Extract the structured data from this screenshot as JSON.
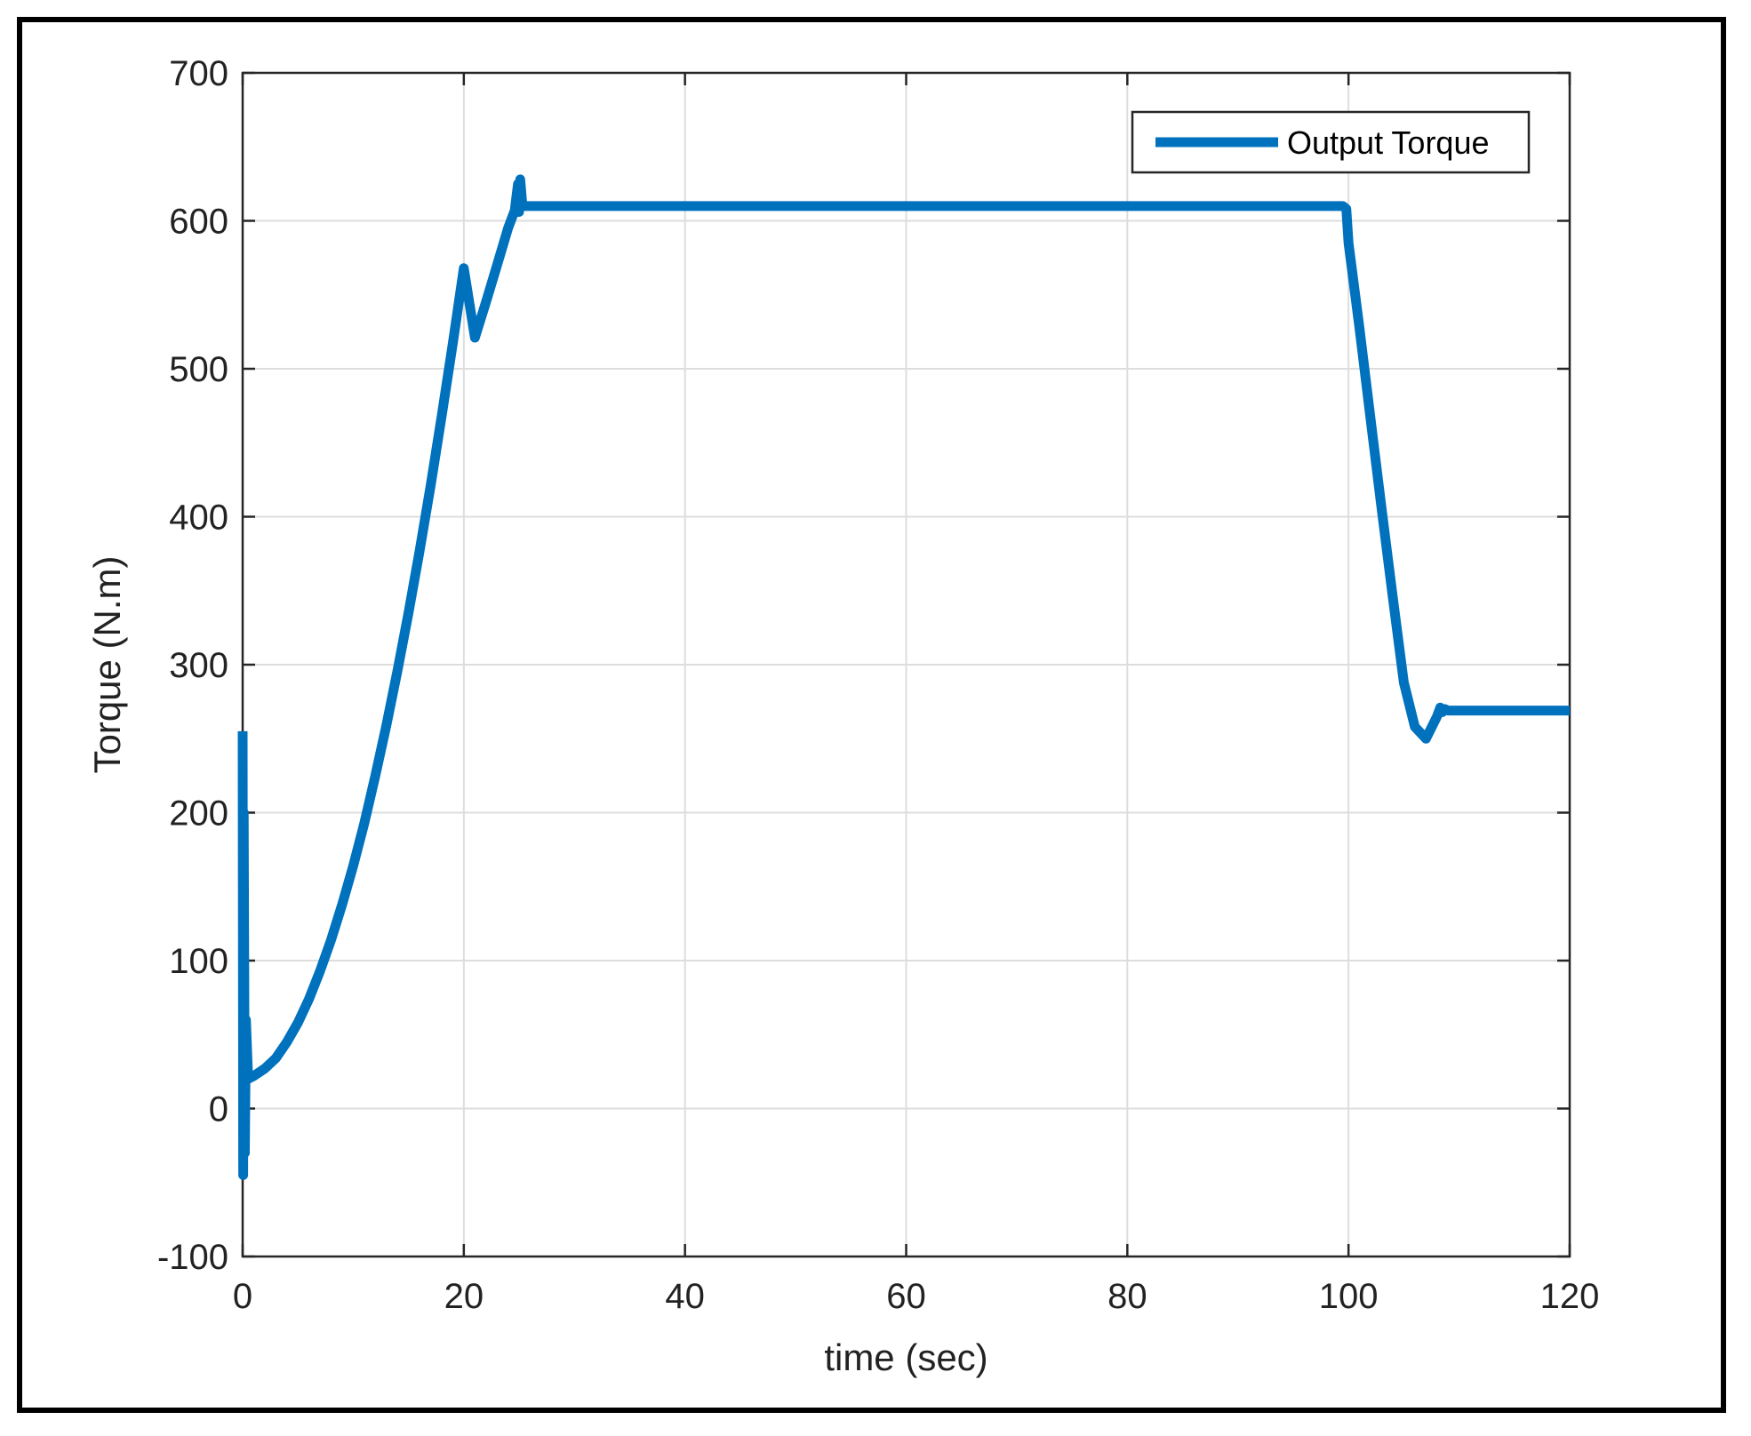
{
  "chart_data": {
    "type": "line",
    "title": "",
    "xlabel": "time (sec)",
    "ylabel": "Torque (N.m)",
    "xlim": [
      0,
      120
    ],
    "ylim": [
      -100,
      700
    ],
    "x_ticks": [
      0,
      20,
      40,
      60,
      80,
      100,
      120
    ],
    "y_ticks": [
      -100,
      0,
      100,
      200,
      300,
      400,
      500,
      600,
      700
    ],
    "grid": true,
    "legend": {
      "placement": "top-right",
      "entries": [
        "Output Torque"
      ]
    },
    "series": [
      {
        "name": "Output Torque",
        "color": "#0072BD",
        "x": [
          0,
          0.05,
          0.1,
          0.2,
          0.3,
          0.5,
          1,
          2,
          3,
          4,
          5,
          6,
          7,
          8,
          9,
          10,
          11,
          12,
          13,
          14,
          15,
          16,
          17,
          18,
          19,
          20,
          21,
          22,
          23,
          24,
          24.6,
          24.9,
          25.0,
          25.1,
          25.3,
          26,
          30,
          40,
          50,
          60,
          70,
          80,
          90,
          99.5,
          99.8,
          100,
          101,
          102,
          103,
          104,
          105,
          106,
          107,
          108,
          108.3,
          108.5,
          108.7,
          109,
          110,
          112,
          115,
          118,
          120
        ],
        "y": [
          255,
          -45,
          200,
          -30,
          60,
          20,
          22,
          27,
          34,
          45,
          58,
          74,
          93,
          114,
          138,
          164,
          193,
          225,
          259,
          296,
          335,
          377,
          421,
          468,
          517,
          568,
          521,
          545,
          570,
          595,
          607,
          625,
          606,
          628,
          610,
          610,
          610,
          610,
          610,
          610,
          610,
          610,
          610,
          610,
          608,
          585,
          527,
          466,
          405,
          346,
          288,
          258,
          250,
          265,
          271,
          268,
          270,
          269,
          269,
          269,
          269,
          269,
          269
        ]
      }
    ]
  }
}
